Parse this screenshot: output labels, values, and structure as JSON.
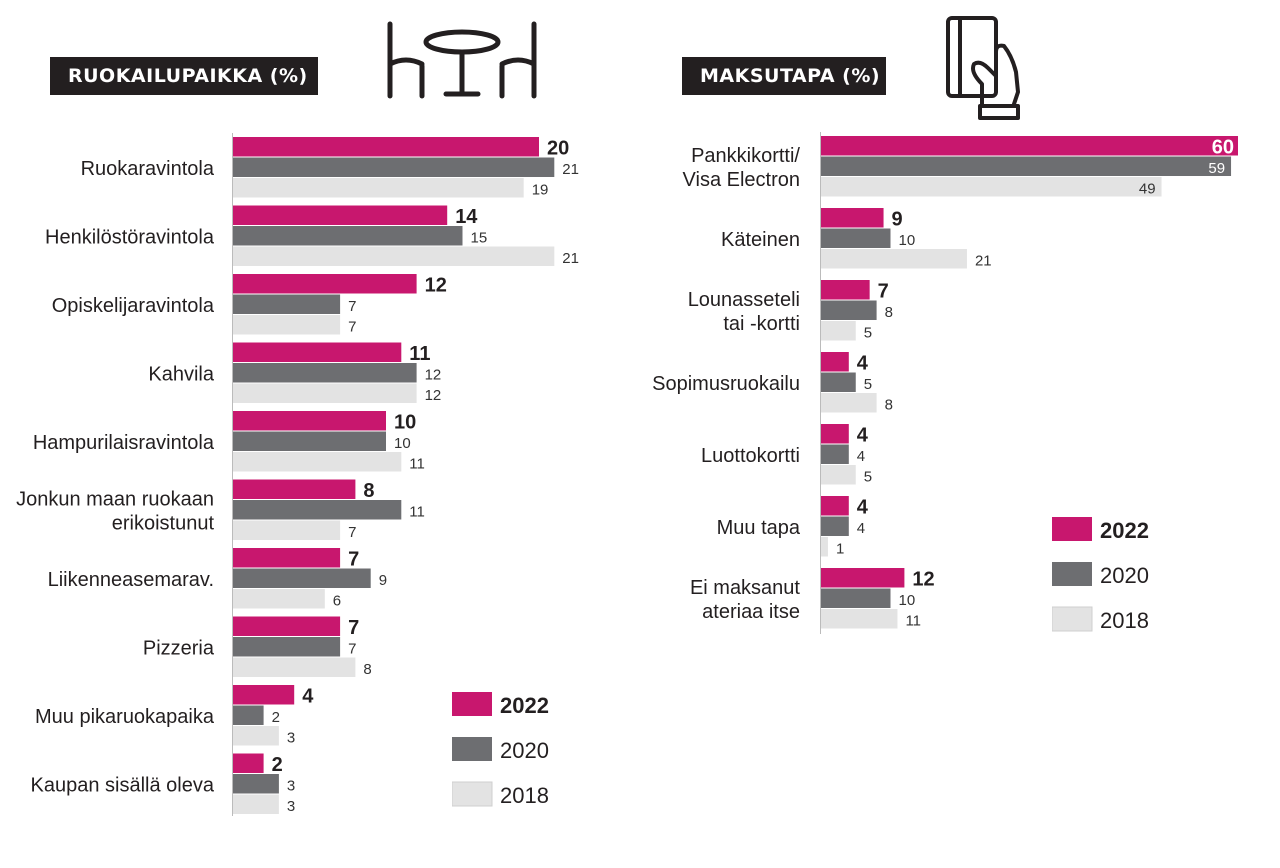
{
  "colors": {
    "2022": "#c8176e",
    "2020": "#6d6e71",
    "2018": "#e3e3e3",
    "heading_bg": "#231f20"
  },
  "left": {
    "heading": "RUOKAILUPAIKKA (%)",
    "icon": "table-chairs-icon"
  },
  "right": {
    "heading": "MAKSUTAPA (%)",
    "icon": "hand-card-icon"
  },
  "legend": [
    "2022",
    "2020",
    "2018"
  ],
  "chart_data": [
    {
      "type": "bar",
      "orientation": "horizontal",
      "title": "RUOKAILUPAIKKA (%)",
      "categories": [
        [
          "Ruokaravintola"
        ],
        [
          "Henkilöstöravintola"
        ],
        [
          "Opiskelijaravintola"
        ],
        [
          "Kahvila"
        ],
        [
          "Hampurilaisravintola"
        ],
        [
          "Jonkun maan ruokaan",
          "erikoistunut"
        ],
        [
          "Liikenneasemarav."
        ],
        [
          "Pizzeria"
        ],
        [
          "Muu pikaruokapaika"
        ],
        [
          "Kaupan sisällä oleva"
        ]
      ],
      "series": [
        {
          "name": "2022",
          "values": [
            20,
            14,
            12,
            11,
            10,
            8,
            7,
            7,
            4,
            2
          ]
        },
        {
          "name": "2020",
          "values": [
            21,
            15,
            7,
            12,
            10,
            11,
            9,
            7,
            2,
            3
          ]
        },
        {
          "name": "2018",
          "values": [
            19,
            21,
            7,
            12,
            11,
            7,
            6,
            8,
            3,
            3
          ]
        }
      ],
      "legend_position": "bottom-right",
      "grid": false
    },
    {
      "type": "bar",
      "orientation": "horizontal",
      "title": "MAKSUTAPA (%)",
      "categories": [
        [
          "Pankkikortti/",
          "Visa Electron"
        ],
        [
          "Käteinen"
        ],
        [
          "Lounasseteli",
          "tai -kortti"
        ],
        [
          "Sopimusruokailu"
        ],
        [
          "Luottokortti"
        ],
        [
          "Muu tapa"
        ],
        [
          "Ei maksanut",
          "ateriaa itse"
        ]
      ],
      "series": [
        {
          "name": "2022",
          "values": [
            60,
            9,
            7,
            4,
            4,
            4,
            12
          ]
        },
        {
          "name": "2020",
          "values": [
            59,
            10,
            8,
            5,
            4,
            4,
            10
          ]
        },
        {
          "name": "2018",
          "values": [
            49,
            21,
            5,
            8,
            5,
            1,
            11
          ]
        }
      ],
      "legend_position": "right",
      "grid": false
    }
  ]
}
